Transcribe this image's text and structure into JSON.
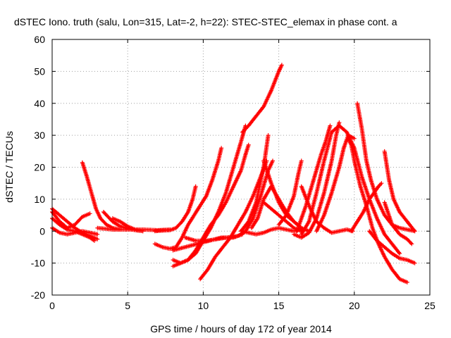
{
  "chart_data": {
    "type": "scatter",
    "title": "dSTEC Iono. truth (salu, Lon=315, Lat=-2, h=22): STEC-STEC_elemax in phase cont. a",
    "xlabel": "GPS time / hours of day 172 of year 2014",
    "ylabel": "dSTEC  / TECUs",
    "xlim": [
      0,
      25
    ],
    "ylim": [
      -20,
      60
    ],
    "xticks": [
      0,
      5,
      10,
      15,
      20,
      25
    ],
    "yticks": [
      -20,
      -10,
      0,
      10,
      20,
      30,
      40,
      50,
      60
    ],
    "grid": true,
    "marker": "+",
    "color": "#ff0000",
    "series": [
      {
        "name": "arc1",
        "points": [
          [
            0,
            7
          ],
          [
            0.5,
            5
          ],
          [
            1,
            3
          ],
          [
            1.5,
            1
          ],
          [
            2,
            -0.5
          ],
          [
            2.5,
            -1.5
          ],
          [
            3,
            -2.5
          ]
        ]
      },
      {
        "name": "arc2",
        "points": [
          [
            0,
            4
          ],
          [
            0.5,
            2
          ],
          [
            1,
            0.5
          ],
          [
            1.5,
            0
          ],
          [
            2,
            -1
          ],
          [
            2.5,
            -2
          ],
          [
            2.8,
            -3
          ]
        ]
      },
      {
        "name": "arc3",
        "points": [
          [
            0,
            1
          ],
          [
            0.5,
            -0.5
          ],
          [
            1,
            -1
          ],
          [
            1.5,
            -0.5
          ],
          [
            2,
            0
          ],
          [
            2.5,
            -0.5
          ],
          [
            3,
            -1
          ]
        ]
      },
      {
        "name": "arc4",
        "points": [
          [
            0,
            6
          ],
          [
            0.5,
            3
          ],
          [
            1,
            1
          ],
          [
            1.5,
            2
          ],
          [
            2,
            4.5
          ],
          [
            2.5,
            5.5
          ]
        ]
      },
      {
        "name": "arc5",
        "points": [
          [
            2,
            21.5
          ],
          [
            2.3,
            17
          ],
          [
            2.6,
            12
          ],
          [
            2.9,
            7
          ],
          [
            3.2,
            4
          ],
          [
            3.6,
            2
          ],
          [
            4,
            1
          ],
          [
            4.5,
            0.5
          ]
        ]
      },
      {
        "name": "arc6",
        "points": [
          [
            3.4,
            6
          ],
          [
            4,
            3
          ],
          [
            4.5,
            1.5
          ],
          [
            5,
            0.8
          ],
          [
            5.5,
            0.3
          ],
          [
            6,
            0
          ]
        ]
      },
      {
        "name": "arc7",
        "points": [
          [
            3,
            1
          ],
          [
            4,
            0.5
          ],
          [
            5,
            0.5
          ],
          [
            6,
            0.5
          ],
          [
            7,
            0.3
          ],
          [
            7.8,
            0.5
          ]
        ]
      },
      {
        "name": "arc8",
        "points": [
          [
            4,
            4
          ],
          [
            4.5,
            3
          ],
          [
            5,
            1.5
          ],
          [
            5.5,
            0.5
          ],
          [
            6,
            0
          ]
        ]
      },
      {
        "name": "arc9",
        "points": [
          [
            6.8,
            0
          ],
          [
            7.3,
            0.2
          ],
          [
            7.8,
            0.3
          ],
          [
            8.2,
            1
          ],
          [
            8.6,
            3
          ],
          [
            9,
            6
          ],
          [
            9.3,
            10
          ],
          [
            9.5,
            14
          ]
        ]
      },
      {
        "name": "arc10",
        "points": [
          [
            6.8,
            -4
          ],
          [
            7.3,
            -5
          ],
          [
            7.8,
            -5.5
          ],
          [
            8.2,
            -5
          ],
          [
            8.6,
            -2
          ],
          [
            9,
            2
          ],
          [
            9.4,
            5
          ],
          [
            9.8,
            8
          ],
          [
            10.2,
            11
          ],
          [
            10.6,
            16
          ],
          [
            11,
            22
          ],
          [
            11.2,
            26
          ]
        ]
      },
      {
        "name": "arc11",
        "points": [
          [
            8,
            -9
          ],
          [
            8.5,
            -10
          ],
          [
            9,
            -9
          ],
          [
            9.5,
            -6
          ],
          [
            10,
            -2
          ],
          [
            10.5,
            2
          ],
          [
            11,
            5
          ],
          [
            11.5,
            9
          ],
          [
            12,
            14
          ],
          [
            12.5,
            19
          ],
          [
            12.8,
            24
          ],
          [
            13,
            27
          ]
        ]
      },
      {
        "name": "arc12",
        "points": [
          [
            8,
            -11
          ],
          [
            8.5,
            -10
          ],
          [
            9,
            -9
          ],
          [
            9.5,
            -7
          ],
          [
            10,
            -3
          ],
          [
            10.5,
            1
          ],
          [
            11,
            6
          ],
          [
            11.5,
            12
          ],
          [
            12,
            20
          ],
          [
            12.5,
            28
          ],
          [
            12.8,
            33
          ]
        ]
      },
      {
        "name": "arc13",
        "points": [
          [
            9.8,
            -15
          ],
          [
            10.3,
            -12
          ],
          [
            10.8,
            -8
          ],
          [
            11.3,
            -5
          ],
          [
            11.8,
            -2
          ],
          [
            12.3,
            2
          ],
          [
            12.8,
            6
          ],
          [
            13.3,
            11
          ],
          [
            13.8,
            17
          ],
          [
            14.2,
            22
          ]
        ]
      },
      {
        "name": "arc14",
        "points": [
          [
            8.8,
            -2
          ],
          [
            9.5,
            -3
          ],
          [
            10.2,
            -3
          ],
          [
            10.9,
            -2.5
          ],
          [
            11.6,
            -2
          ],
          [
            12.3,
            -1.5
          ],
          [
            12.8,
            0
          ],
          [
            13.3,
            4
          ],
          [
            13.8,
            11
          ],
          [
            14.3,
            19
          ],
          [
            14.6,
            22
          ]
        ]
      },
      {
        "name": "arc15",
        "points": [
          [
            8,
            -6
          ],
          [
            8.8,
            -5
          ],
          [
            9.6,
            -4
          ],
          [
            10.4,
            -3
          ],
          [
            11.2,
            -2
          ],
          [
            12,
            -2
          ],
          [
            12.6,
            -1
          ]
        ]
      },
      {
        "name": "arc16",
        "points": [
          [
            12.5,
            0
          ],
          [
            13,
            3
          ],
          [
            13.5,
            9
          ],
          [
            14,
            20
          ],
          [
            14.3,
            30
          ]
        ]
      },
      {
        "name": "arc17",
        "points": [
          [
            12.6,
            31
          ],
          [
            13,
            33
          ],
          [
            13.5,
            36
          ],
          [
            14,
            39
          ],
          [
            14.5,
            44
          ],
          [
            15,
            50
          ],
          [
            15.2,
            52
          ]
        ]
      },
      {
        "name": "arc18",
        "points": [
          [
            12.5,
            0
          ],
          [
            13,
            -0.5
          ],
          [
            13.5,
            -1
          ],
          [
            14,
            -0.5
          ],
          [
            14.5,
            0.5
          ],
          [
            15,
            1
          ],
          [
            15.5,
            0.5
          ],
          [
            16,
            0
          ],
          [
            16.5,
            0.5
          ]
        ]
      },
      {
        "name": "arc19",
        "points": [
          [
            13.2,
            1
          ],
          [
            13.6,
            4
          ],
          [
            14,
            10
          ],
          [
            14.5,
            14
          ],
          [
            15,
            10
          ],
          [
            15.5,
            6
          ],
          [
            16,
            3
          ],
          [
            16.5,
            1
          ]
        ]
      },
      {
        "name": "arc20",
        "points": [
          [
            14,
            9
          ],
          [
            14.5,
            7
          ],
          [
            15,
            5
          ],
          [
            15.5,
            3
          ],
          [
            16,
            1
          ],
          [
            16.5,
            0
          ]
        ]
      },
      {
        "name": "arc21",
        "points": [
          [
            14,
            22
          ],
          [
            14.5,
            15
          ],
          [
            15,
            9
          ],
          [
            15.5,
            5
          ],
          [
            16,
            3
          ],
          [
            16.5,
            1
          ],
          [
            17,
            0
          ]
        ]
      },
      {
        "name": "arc22",
        "points": [
          [
            15,
            2
          ],
          [
            15.5,
            5
          ],
          [
            16,
            11
          ],
          [
            16.3,
            18
          ],
          [
            16.5,
            22
          ]
        ]
      },
      {
        "name": "arc23",
        "points": [
          [
            16.5,
            14
          ],
          [
            17,
            8
          ],
          [
            17.5,
            3
          ],
          [
            18,
            1
          ],
          [
            18.5,
            -0.5
          ],
          [
            19,
            0
          ],
          [
            19.5,
            0.5
          ],
          [
            19.9,
            0
          ]
        ]
      },
      {
        "name": "arc24",
        "points": [
          [
            16,
            -1
          ],
          [
            16.5,
            -2
          ],
          [
            17,
            -0.5
          ],
          [
            17.5,
            4
          ],
          [
            18,
            12
          ],
          [
            18.5,
            22
          ],
          [
            18.8,
            30
          ],
          [
            19,
            34
          ]
        ]
      },
      {
        "name": "arc25",
        "points": [
          [
            16.5,
            -1
          ],
          [
            17,
            3
          ],
          [
            17.5,
            12
          ],
          [
            18,
            22
          ],
          [
            18.5,
            31
          ],
          [
            19,
            33
          ],
          [
            19.5,
            31
          ],
          [
            20,
            26
          ],
          [
            20.5,
            17
          ],
          [
            21,
            10
          ],
          [
            21.5,
            4
          ],
          [
            22,
            -1
          ],
          [
            22.5,
            -4
          ],
          [
            23,
            -7
          ]
        ]
      },
      {
        "name": "arc26",
        "points": [
          [
            16.2,
            0
          ],
          [
            16.8,
            8
          ],
          [
            17.3,
            16
          ],
          [
            17.8,
            24
          ],
          [
            18.1,
            28
          ],
          [
            18.4,
            33
          ]
        ]
      },
      {
        "name": "arc27",
        "points": [
          [
            17.5,
            0
          ],
          [
            18,
            5
          ],
          [
            18.5,
            12
          ],
          [
            19,
            20
          ],
          [
            19.3,
            26
          ],
          [
            19.6,
            30
          ],
          [
            20,
            29
          ]
        ]
      },
      {
        "name": "arc28",
        "points": [
          [
            19.6,
            29
          ],
          [
            19.8,
            27
          ],
          [
            20,
            22
          ],
          [
            20.4,
            14
          ],
          [
            20.8,
            8
          ],
          [
            21.2,
            1
          ],
          [
            21.6,
            -4
          ],
          [
            22,
            -8
          ],
          [
            22.5,
            -12
          ],
          [
            23,
            -15
          ],
          [
            23.5,
            -16
          ]
        ]
      },
      {
        "name": "arc29",
        "points": [
          [
            20.2,
            40
          ],
          [
            20.5,
            32
          ],
          [
            20.8,
            22
          ],
          [
            21.1,
            16
          ],
          [
            21.5,
            10
          ],
          [
            22,
            5
          ],
          [
            22.5,
            2
          ],
          [
            23,
            1
          ],
          [
            23.5,
            0.5
          ],
          [
            24,
            0
          ]
        ]
      },
      {
        "name": "arc30",
        "points": [
          [
            19.8,
            0
          ],
          [
            20.2,
            3
          ],
          [
            20.6,
            6
          ],
          [
            21,
            10
          ],
          [
            21.3,
            12
          ],
          [
            21.6,
            14
          ],
          [
            21.8,
            15
          ]
        ]
      },
      {
        "name": "arc31",
        "points": [
          [
            22,
            25
          ],
          [
            22.3,
            16
          ],
          [
            22.6,
            10
          ],
          [
            23,
            6
          ],
          [
            23.5,
            3
          ],
          [
            24,
            0
          ]
        ]
      },
      {
        "name": "arc32",
        "points": [
          [
            21,
            0
          ],
          [
            21.5,
            -3
          ],
          [
            22,
            -5
          ],
          [
            22.5,
            -7
          ],
          [
            23,
            -8.5
          ],
          [
            23.5,
            -9
          ],
          [
            24,
            -10
          ]
        ]
      },
      {
        "name": "arc33",
        "points": [
          [
            22,
            9
          ],
          [
            22.5,
            2
          ],
          [
            23,
            -1
          ],
          [
            23.5,
            -2.5
          ],
          [
            23.8,
            -4
          ]
        ]
      }
    ]
  }
}
